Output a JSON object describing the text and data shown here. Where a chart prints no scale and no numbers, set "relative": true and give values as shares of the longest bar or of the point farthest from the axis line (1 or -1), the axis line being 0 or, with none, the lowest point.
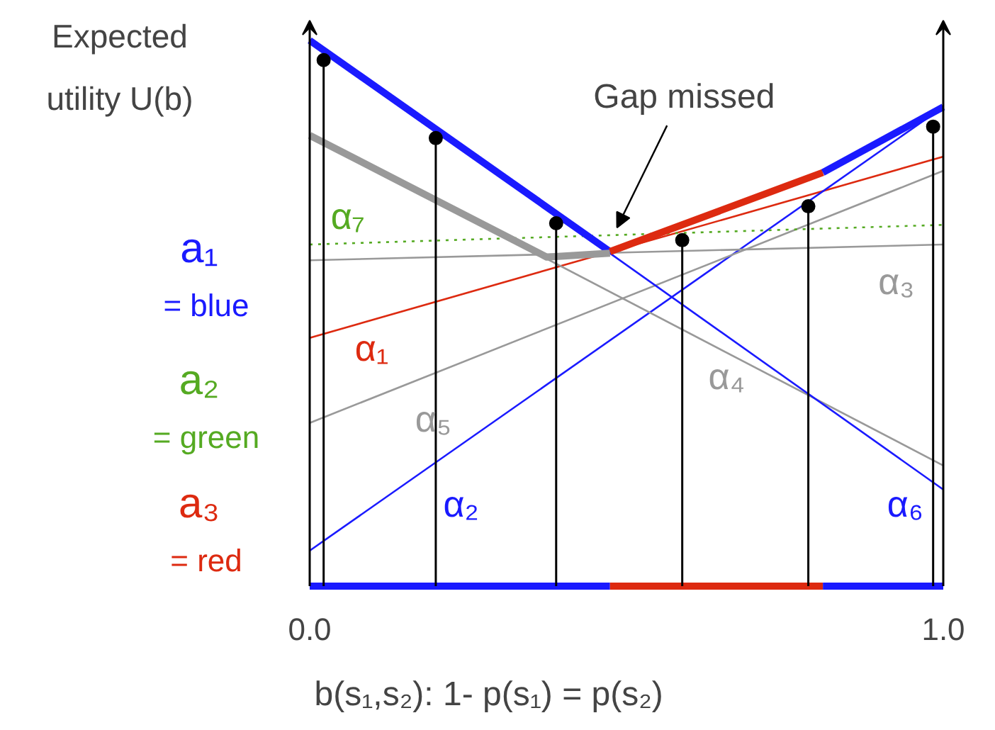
{
  "chart_data": {
    "type": "line",
    "relative": true,
    "xlabel": "b(s₁,s₂):   1- p(s₁) = p(s₂)",
    "ylabel": "Expected utility U(b)",
    "xlim": [
      0,
      1
    ],
    "xticks": [
      {
        "value": 0,
        "label": "0.0"
      },
      {
        "value": 1,
        "label": "1.0"
      }
    ],
    "grid": false,
    "series": [
      {
        "name": "α₁",
        "color": "#dd2a10",
        "x": [
          0,
          1
        ],
        "values": [
          0.455,
          0.787
        ]
      },
      {
        "name": "α₂",
        "color": "#1a1aff",
        "x": [
          0,
          1
        ],
        "values": [
          0.065,
          0.878
        ]
      },
      {
        "name": "α₃",
        "color": "#999999",
        "x": [
          0,
          1
        ],
        "values": [
          0.597,
          0.626
        ]
      },
      {
        "name": "α₄",
        "color": "#999999",
        "x": [
          0,
          1
        ],
        "values": [
          0.826,
          0.221
        ]
      },
      {
        "name": "α₅",
        "color": "#999999",
        "x": [
          0,
          1
        ],
        "values": [
          0.299,
          0.761
        ]
      },
      {
        "name": "α₆",
        "color": "#1a1aff",
        "x": [
          0,
          1
        ],
        "values": [
          1.0,
          0.177
        ]
      },
      {
        "name": "α₇",
        "color": "#55aa22",
        "x": [
          0,
          1
        ],
        "values": [
          0.626,
          0.662
        ],
        "line_style": "dotted"
      },
      {
        "color": "#1a1aff",
        "x": [
          0,
          0.474
        ],
        "values": [
          1.0,
          0.613
        ]
      },
      {
        "color": "#999999",
        "x": [
          0,
          0.374,
          0.474
        ],
        "values": [
          0.826,
          0.603,
          0.61
        ]
      },
      {
        "color": "#dd2a10",
        "x": [
          0.474,
          0.81
        ],
        "values": [
          0.613,
          0.758
        ]
      },
      {
        "color": "#1a1aff",
        "x": [
          0.81,
          1.0
        ],
        "values": [
          0.758,
          0.878
        ]
      },
      {
        "color": "#1a1aff",
        "x": [
          0,
          0.474
        ],
        "values": [
          0,
          0
        ]
      },
      {
        "color": "#dd2a10",
        "x": [
          0.474,
          0.81
        ],
        "values": [
          0,
          0
        ]
      },
      {
        "color": "#1a1aff",
        "x": [
          0.81,
          1.0
        ],
        "values": [
          0,
          0
        ]
      },
      {
        "type": "lollipop",
        "color": "#000000",
        "x": [
          0.022,
          0.199,
          0.389,
          0.588,
          0.787,
          0.984
        ],
        "values": [
          0.964,
          0.821,
          0.665,
          0.634,
          0.696,
          0.842
        ]
      }
    ],
    "annotations": [
      "a₁",
      "= blue",
      "a₂",
      "= green",
      "a₃",
      "= red",
      {
        "text": "Gap missed",
        "x": 0.485,
        "y": 0.657
      }
    ]
  }
}
